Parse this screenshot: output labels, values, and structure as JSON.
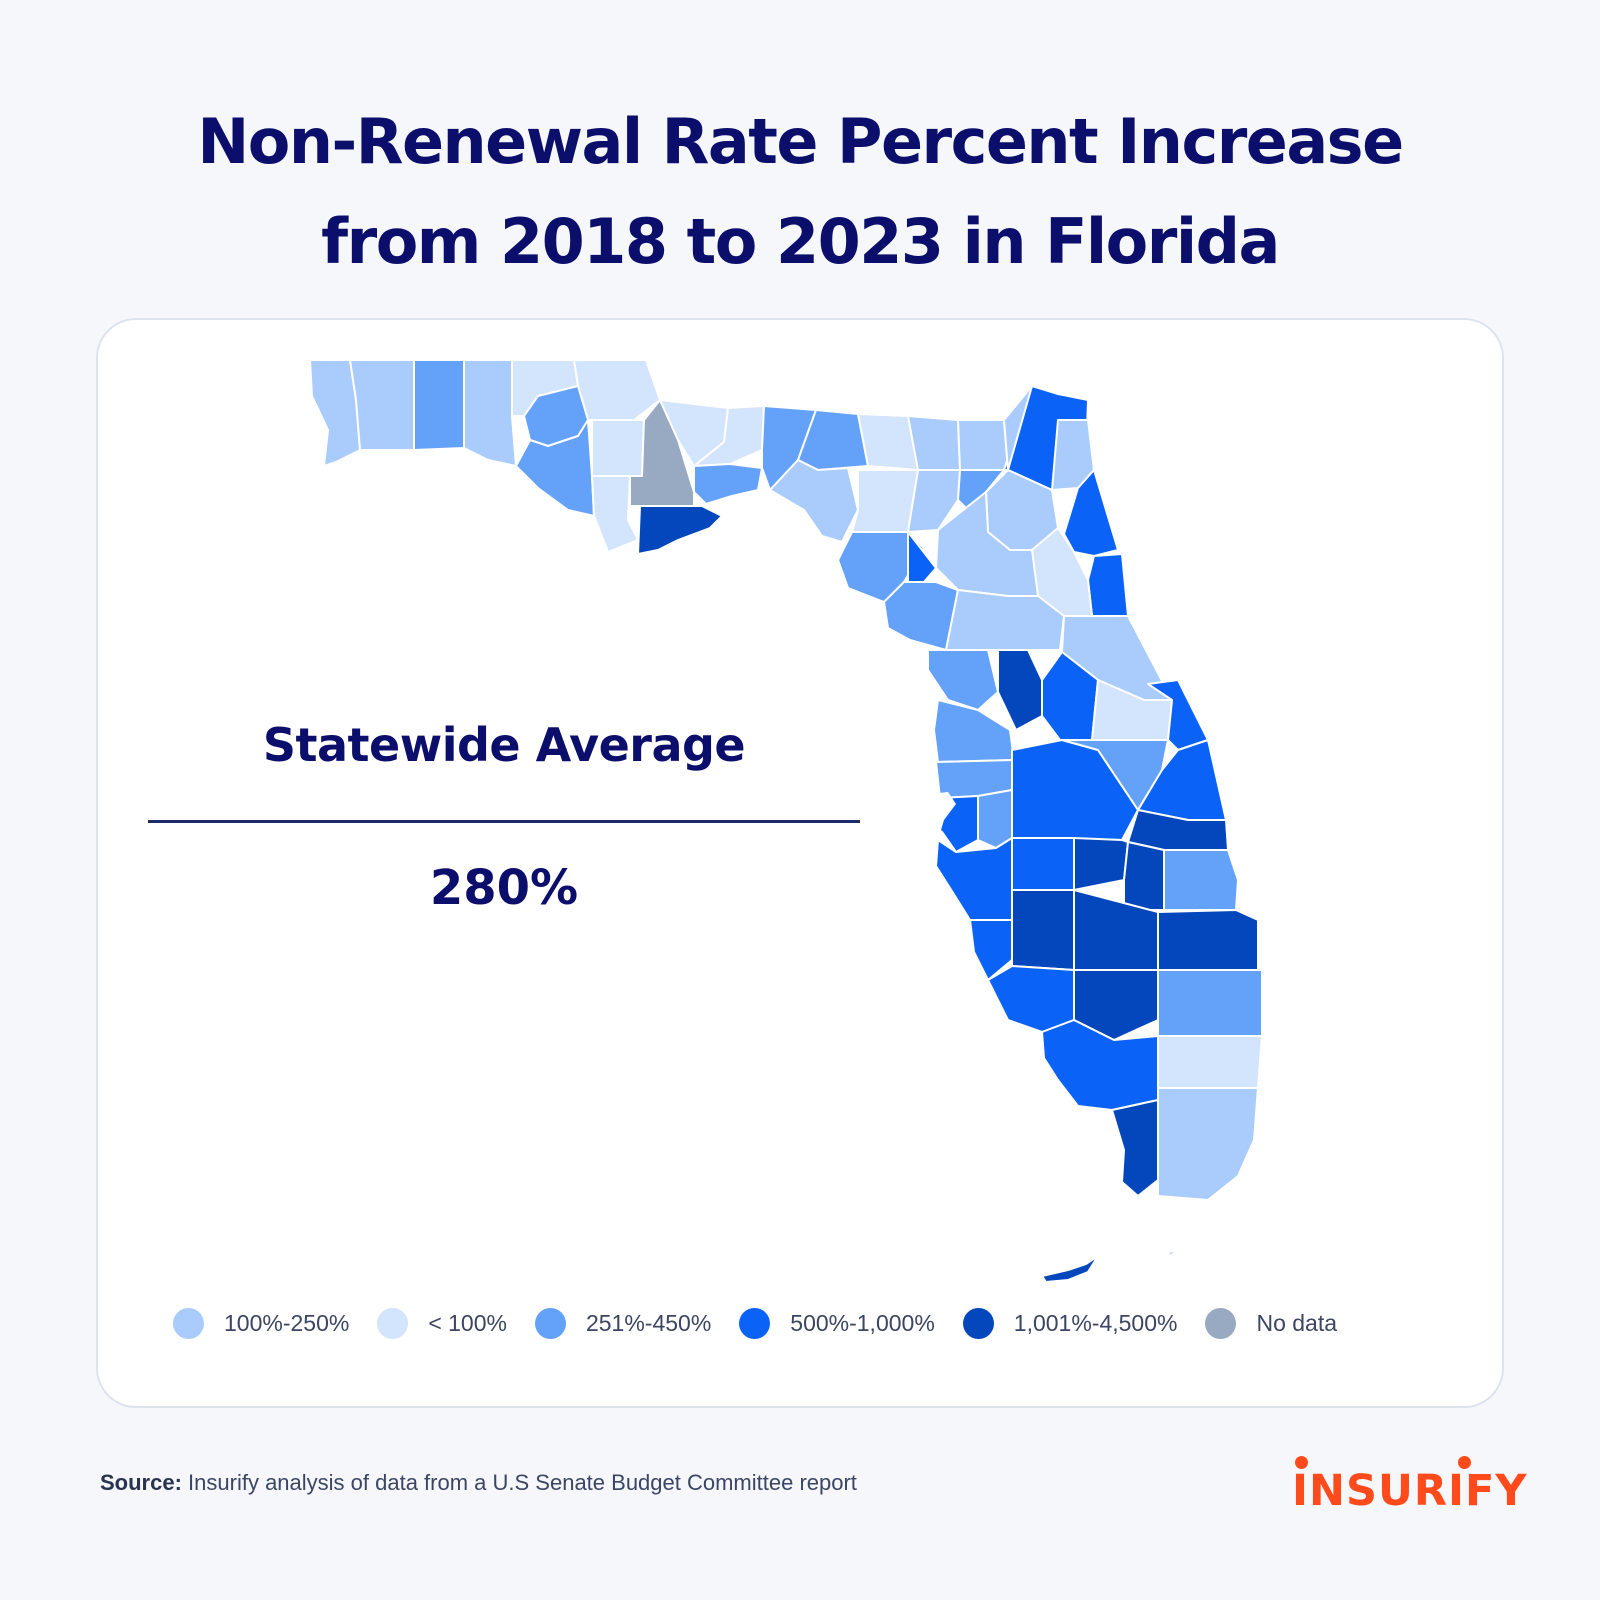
{
  "title": {
    "line1": "Non-Renewal Rate Percent Increase",
    "line2": "from 2018 to 2023 in Florida"
  },
  "statewide": {
    "label": "Statewide Average",
    "value": "280%"
  },
  "legend": [
    {
      "key": "l2",
      "label": "100%-250%",
      "color": "#a9ccfc"
    },
    {
      "key": "l1",
      "label": "< 100%",
      "color": "#d3e4fd"
    },
    {
      "key": "l3",
      "label": "251%-450%",
      "color": "#64a2fa"
    },
    {
      "key": "l4",
      "label": "500%-1,000%",
      "color": "#0b62f7"
    },
    {
      "key": "l5",
      "label": "1,001%-4,500%",
      "color": "#0447bd"
    },
    {
      "key": "nd",
      "label": "No data",
      "color": "#98a9c2"
    }
  ],
  "source": {
    "label": "Source:",
    "text": "Insurify analysis of data from a U.S Senate Budget Committee report"
  },
  "brand": {
    "name": "INSURIFY",
    "color": "#ff4a1c"
  }
}
